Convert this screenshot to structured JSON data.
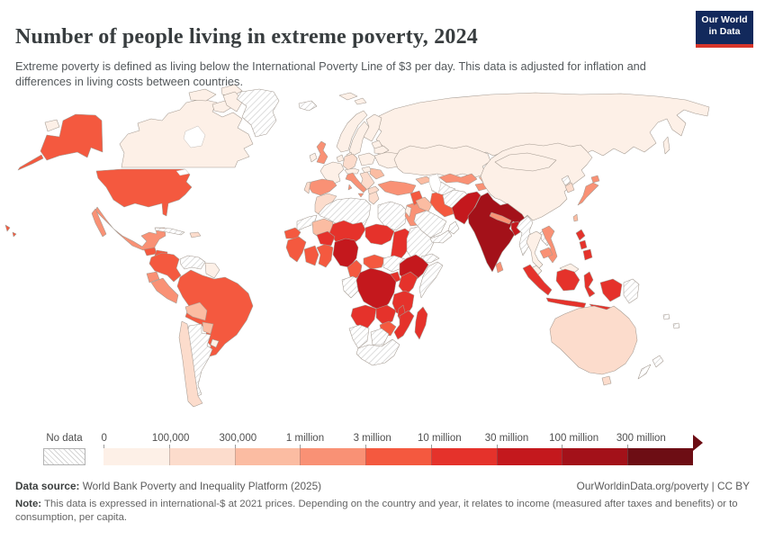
{
  "header": {
    "title": "Number of people living in extreme poverty, 2024",
    "subtitle": "Extreme poverty is defined as living below the International Poverty Line of $3 per day. This data is adjusted for inflation and differences in living costs between countries.",
    "logo": {
      "line1": "Our World",
      "line2": "in Data",
      "bg_color": "#12295c",
      "accent_color": "#d7352a"
    }
  },
  "footer": {
    "source_label": "Data source:",
    "source_text": " World Bank Poverty and Inequality Platform (2025)",
    "link_text": "OurWorldinData.org/poverty | CC BY",
    "note_label": "Note:",
    "note_text": " This data is expressed in international-$ at 2021 prices. Depending on the country and year, it relates to income (measured after taxes and benefits) or to consumption, per capita."
  },
  "chart_data": {
    "type": "choropleth",
    "title": "Number of people living in extreme poverty, 2024",
    "year": "2024",
    "no_data_label": "No data",
    "legend_position": "bottom",
    "legend_buckets": [
      "0",
      "100,000",
      "300,000",
      "1 million",
      "3 million",
      "10 million",
      "30 million",
      "100 million",
      "300 million"
    ],
    "bucket_ranges": [
      "0-100,000",
      "100,000-300,000",
      "300,000-1 million",
      "1-3 million",
      "3-10 million",
      "10-30 million",
      "30-100 million",
      "100-300 million",
      "300 million+"
    ],
    "bucket_colors": [
      "#fdf0e7",
      "#fcdccc",
      "#fbbca2",
      "#f99175",
      "#f4593f",
      "#e5322b",
      "#c4181d",
      "#a31119",
      "#6d0d14"
    ],
    "no_data_fill_lines": "#cccccc",
    "country_buckets": {
      "canada": 1,
      "greenland": 0,
      "iceland": 0,
      "usa": 5,
      "wrangel_island": 1,
      "mexico": 4,
      "guatemala": 5,
      "honduras_nicaragua": 5,
      "costa_rica_panama": 2,
      "cuba": 0,
      "hispaniola": 2,
      "colombia": 5,
      "venezuela": 0,
      "guyanas": 1,
      "ecuador": 4,
      "peru": 4,
      "brazil": 5,
      "bolivia": 3,
      "paraguay": 3,
      "chile": 2,
      "argentina": 0,
      "uruguay": 1,
      "svalbard": 1,
      "norway": 1,
      "sweden": 1,
      "finland": 1,
      "denmark": 1,
      "uk": 4,
      "ireland": 1,
      "france": 1,
      "benelux": 1,
      "germany": 2,
      "poland": 1,
      "baltics": 1,
      "belarus": 1,
      "ukraine": 1,
      "switzerland_austria": 1,
      "hungary": 1,
      "romania": 3,
      "balkans": 2,
      "greece": 2,
      "italy": 4,
      "spain": 4,
      "portugal": 2,
      "russia": 1,
      "sakhalin": 1,
      "morocco": 2,
      "western_sahara": 0,
      "algeria": 0,
      "tunisia": 2,
      "libya": 0,
      "egypt": 4,
      "mauritania": 3,
      "mali": 6,
      "niger": 6,
      "chad": 6,
      "sudan": 0,
      "eritrea": 0,
      "senegal": 5,
      "guinea": 5,
      "ivory_coast": 5,
      "ghana": 5,
      "burkina_faso": 6,
      "nigeria": 7,
      "cameroon": 5,
      "car": 5,
      "south_sudan": 0,
      "ethiopia": 7,
      "somalia": 0,
      "uganda": 6,
      "kenya": 6,
      "gabon_congo": 0,
      "drc": 7,
      "tanzania": 6,
      "angola": 6,
      "zambia": 6,
      "malawi": 6,
      "mozambique": 6,
      "zimbabwe": 5,
      "madagascar": 6,
      "namibia": 0,
      "botswana": 0,
      "south_africa": 0,
      "turkey": 4,
      "caucasus": 3,
      "syria": 5,
      "iraq": 3,
      "israel_jordan": 1,
      "saudi_arabia": 0,
      "yemen": 0,
      "oman": 0,
      "iran": 5,
      "kazakhstan": 1,
      "uzbekistan": 4,
      "turkmenistan": 0,
      "kyrgyzstan": 3,
      "tajikistan": 4,
      "afghanistan": 0,
      "pakistan": 7,
      "india": 8,
      "nepal": 4,
      "bangladesh": 7,
      "sri_lanka": 4,
      "myanmar": 0,
      "china": 1,
      "mongolia": 1,
      "north_korea": 0,
      "south_korea": 2,
      "japan": 4,
      "taiwan": 3,
      "vietnam": 4,
      "laos": 0,
      "thailand": 1,
      "cambodia": 4,
      "malaysia": 1,
      "philippines": 6,
      "indonesia": 6,
      "papua_new_guinea": 0,
      "fiji_vanuatu": 0,
      "new_zealand": 0,
      "australia": 2,
      "hawaii": 5
    }
  }
}
